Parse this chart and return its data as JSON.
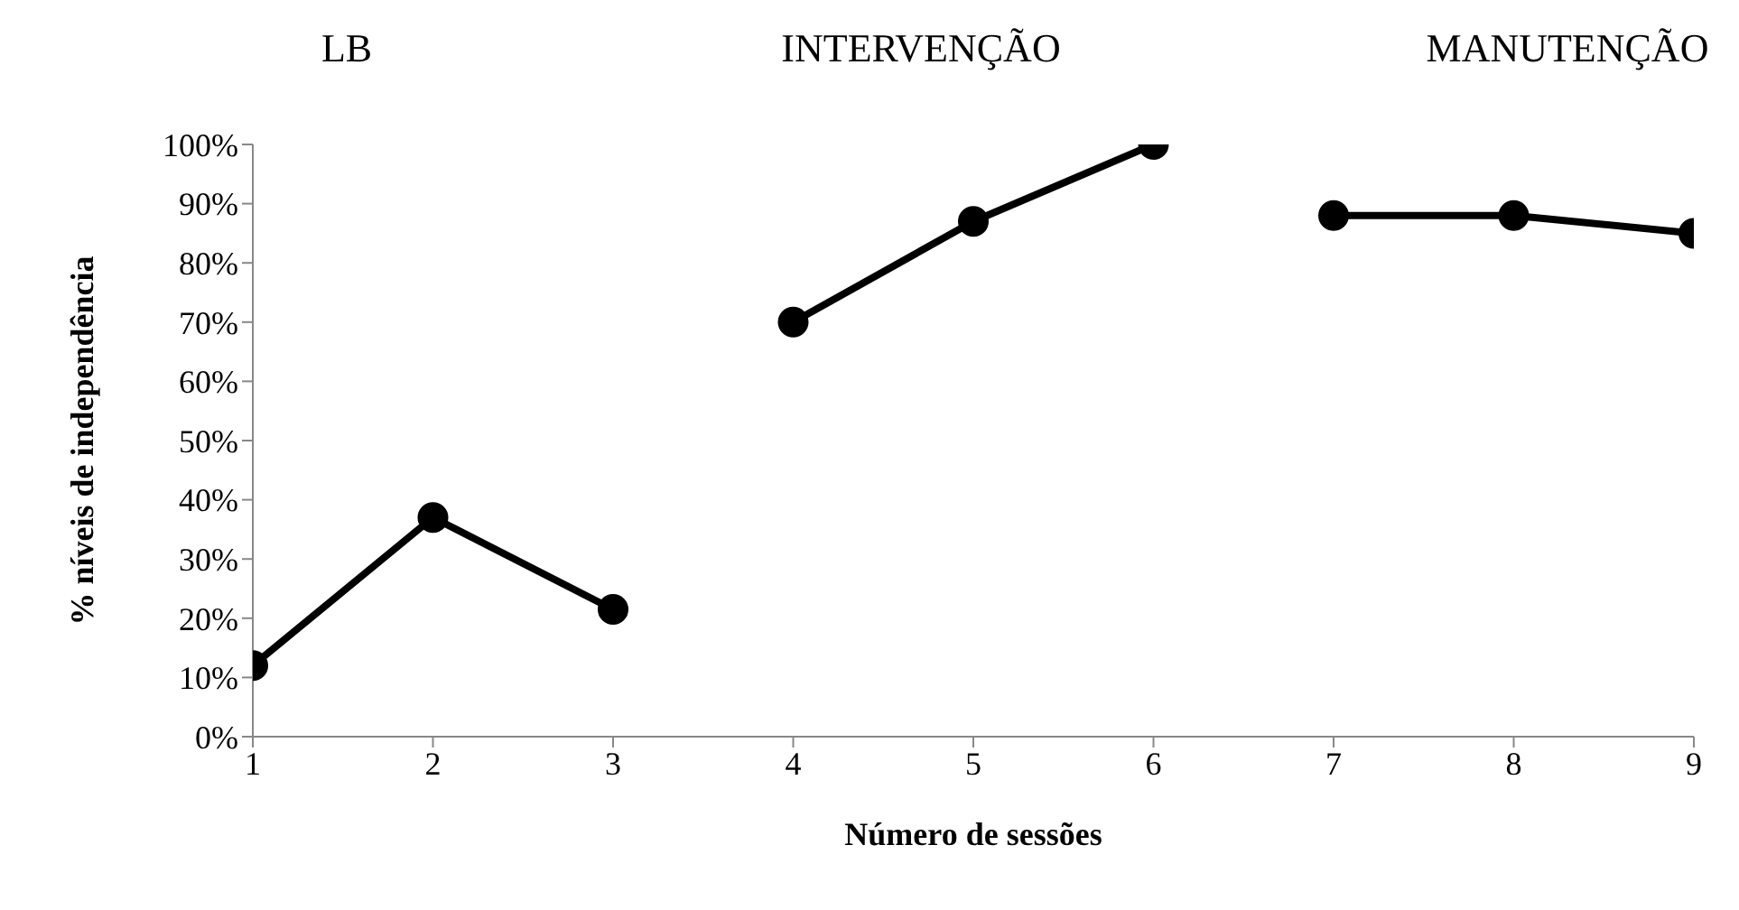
{
  "chart_data": {
    "type": "line",
    "xlabel": "Número de sessões",
    "ylabel": "% níveis de independência",
    "annotations": [
      "LB",
      "INTERVENÇÃO",
      "MANUTENÇÃO"
    ],
    "series": [
      {
        "color": "#000000",
        "x": [
          1,
          2,
          3
        ],
        "values": [
          12,
          37,
          21.5
        ]
      },
      {
        "color": "#000000",
        "x": [
          4,
          5,
          6
        ],
        "values": [
          70,
          87,
          100
        ]
      },
      {
        "color": "#000000",
        "x": [
          7,
          8,
          9
        ],
        "values": [
          88,
          88,
          85
        ]
      }
    ],
    "xlim": [
      1,
      9
    ],
    "xticks": [
      1,
      2,
      3,
      4,
      5,
      6,
      7,
      8,
      9
    ],
    "ylim": [
      0,
      100
    ],
    "yticks": [
      {
        "value": 0,
        "label": "0%"
      },
      {
        "value": 10,
        "label": "10%"
      },
      {
        "value": 20,
        "label": "20%"
      },
      {
        "value": 30,
        "label": "30%"
      },
      {
        "value": 40,
        "label": "40%"
      },
      {
        "value": 50,
        "label": "50%"
      },
      {
        "value": 60,
        "label": "60%"
      },
      {
        "value": 70,
        "label": "70%"
      },
      {
        "value": 80,
        "label": "80%"
      },
      {
        "value": 90,
        "label": "90%"
      },
      {
        "value": 100,
        "label": "100%"
      }
    ],
    "grid": false,
    "legend": false,
    "marker": "circle",
    "line_style": "solid"
  }
}
